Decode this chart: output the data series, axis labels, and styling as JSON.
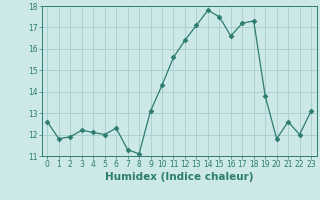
{
  "x": [
    0,
    1,
    2,
    3,
    4,
    5,
    6,
    7,
    8,
    9,
    10,
    11,
    12,
    13,
    14,
    15,
    16,
    17,
    18,
    19,
    20,
    21,
    22,
    23
  ],
  "y": [
    12.6,
    11.8,
    11.9,
    12.2,
    12.1,
    12.0,
    12.3,
    11.3,
    11.1,
    13.1,
    14.3,
    15.6,
    16.4,
    17.1,
    17.8,
    17.5,
    16.6,
    17.2,
    17.3,
    13.8,
    11.8,
    12.6,
    12.0,
    13.1
  ],
  "line_color": "#2d7d6e",
  "marker": "D",
  "marker_size": 2.5,
  "bg_color": "#cce8e8",
  "grid_color": "#aacccc",
  "xlabel": "Humidex (Indice chaleur)",
  "ylim": [
    11,
    18
  ],
  "xlim": [
    -0.5,
    23.5
  ],
  "yticks": [
    11,
    12,
    13,
    14,
    15,
    16,
    17,
    18
  ],
  "xticks": [
    0,
    1,
    2,
    3,
    4,
    5,
    6,
    7,
    8,
    9,
    10,
    11,
    12,
    13,
    14,
    15,
    16,
    17,
    18,
    19,
    20,
    21,
    22,
    23
  ],
  "tick_label_size": 5.5,
  "xlabel_size": 7.5
}
